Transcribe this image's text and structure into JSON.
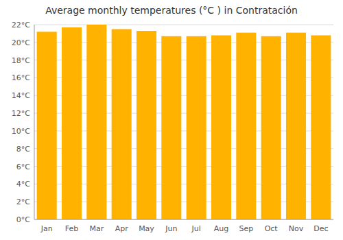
{
  "chart_data": {
    "type": "bar",
    "title": "Average monthly temperatures (°C ) in Contratación",
    "categories": [
      "Jan",
      "Feb",
      "Mar",
      "Apr",
      "May",
      "Jun",
      "Jul",
      "Aug",
      "Sep",
      "Oct",
      "Nov",
      "Dec"
    ],
    "values": [
      21.2,
      21.7,
      22.0,
      21.5,
      21.3,
      20.7,
      20.7,
      20.8,
      21.1,
      20.7,
      21.1,
      20.8
    ],
    "color": "#FFB300",
    "ylim": [
      0,
      22
    ],
    "yticks": [
      {
        "value": 0,
        "label": "0°C"
      },
      {
        "value": 2,
        "label": "2°C"
      },
      {
        "value": 4,
        "label": "4°C"
      },
      {
        "value": 6,
        "label": "6°C"
      },
      {
        "value": 8,
        "label": "8°C"
      },
      {
        "value": 10,
        "label": "10°C"
      },
      {
        "value": 12,
        "label": "12°C"
      },
      {
        "value": 14,
        "label": "14°C"
      },
      {
        "value": 16,
        "label": "16°C"
      },
      {
        "value": 18,
        "label": "18°C"
      },
      {
        "value": 20,
        "label": "20°C"
      },
      {
        "value": 22,
        "label": "22°C"
      }
    ],
    "grid": true
  }
}
